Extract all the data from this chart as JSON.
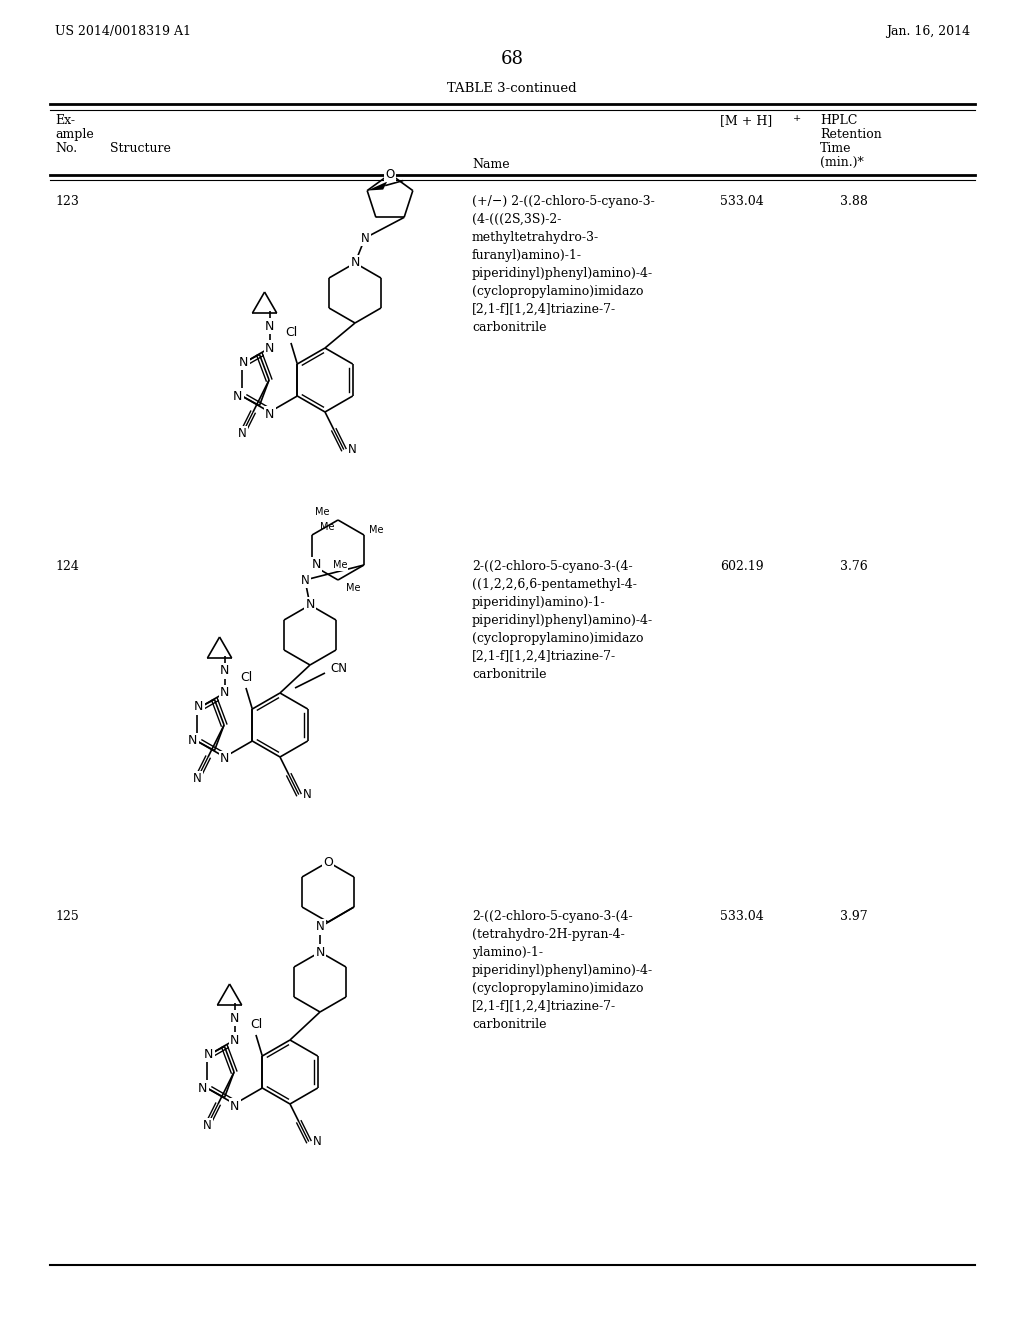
{
  "page_header_left": "US 2014/0018319 A1",
  "page_header_right": "Jan. 16, 2014",
  "page_number": "68",
  "table_title": "TABLE 3-continued",
  "background_color": "#ffffff",
  "text_color": "#000000",
  "rows": [
    {
      "ex_no": "123",
      "name": "(+/−) 2-((2-chloro-5-cyano-3-\n(4-(((2S,3S)-2-\nmethyltetrahydro-3-\nfuranyl)amino)-1-\npiperidinyl)phenyl)amino)-4-\n(cyclopropylamino)imidazo\n[2,1-f][1,2,4]triazine-7-\ncarbonitrile",
      "mh": "533.04",
      "hplc": "3.88"
    },
    {
      "ex_no": "124",
      "name": "2-((2-chloro-5-cyano-3-(4-\n((1,2,2,6,6-pentamethyl-4-\npiperidinyl)amino)-1-\npiperidinyl)phenyl)amino)-4-\n(cyclopropylamino)imidazo\n[2,1-f][1,2,4]triazine-7-\ncarbonitrile",
      "mh": "602.19",
      "hplc": "3.76"
    },
    {
      "ex_no": "125",
      "name": "2-((2-chloro-5-cyano-3-(4-\n(tetrahydro-2H-pyran-4-\nylamino)-1-\npiperidinyl)phenyl)amino)-4-\n(cyclopropylamino)imidazo\n[2,1-f][1,2,4]triazine-7-\ncarbonitrile",
      "mh": "533.04",
      "hplc": "3.97"
    }
  ]
}
